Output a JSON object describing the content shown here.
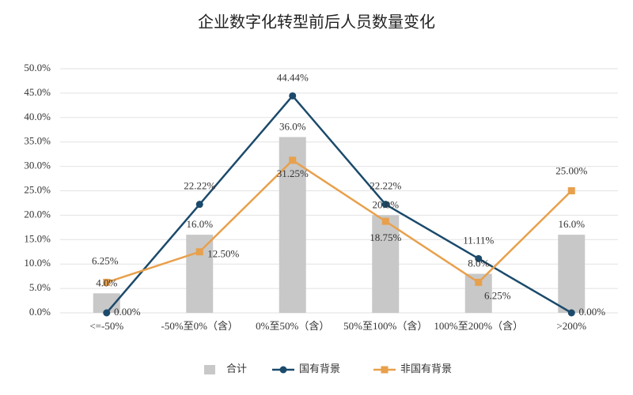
{
  "chart_data": {
    "type": "bar-line",
    "title": "企业数字化转型前后人员数量变化",
    "categories": [
      "<=-50%",
      "-50%至0%（含）",
      "0%至50%（含）",
      "50%至100%（含）",
      "100%至200%（含）",
      ">200%"
    ],
    "ylim": [
      0,
      50
    ],
    "yticks": [
      {
        "value": 0,
        "label": "0.0%"
      },
      {
        "value": 5,
        "label": "5.0%"
      },
      {
        "value": 10,
        "label": "10.0%"
      },
      {
        "value": 15,
        "label": "15.0%"
      },
      {
        "value": 20,
        "label": "20.0%"
      },
      {
        "value": 25,
        "label": "25.0%"
      },
      {
        "value": 30,
        "label": "30.0%"
      },
      {
        "value": 35,
        "label": "35.0%"
      },
      {
        "value": 40,
        "label": "40.0%"
      },
      {
        "value": 45,
        "label": "45.0%"
      },
      {
        "value": 50,
        "label": "50.0%"
      }
    ],
    "grid": true,
    "series": [
      {
        "name": "合计",
        "type": "bar",
        "color": "#c8c8c8",
        "values": [
          4.0,
          16.0,
          36.0,
          20.0,
          8.0,
          16.0
        ],
        "value_labels": [
          "4.0%",
          "16.0%",
          "36.0%",
          "20.0%",
          "8.0%",
          "16.0%"
        ]
      },
      {
        "name": "国有背景",
        "type": "line",
        "color": "#1b4a6b",
        "values": [
          0,
          22.22,
          44.44,
          22.22,
          11.11,
          0
        ],
        "value_labels": [
          "0.00%",
          "22.22%",
          "44.44%",
          "22.22%",
          "11.11%",
          "0.00%"
        ]
      },
      {
        "name": "非国有背景",
        "type": "line",
        "color": "#e8a04c",
        "values": [
          6.25,
          12.5,
          31.25,
          18.75,
          6.25,
          25
        ],
        "value_labels": [
          "6.25%",
          "12.50%",
          "31.25%",
          "18.75%",
          "6.25%",
          "25.00%"
        ]
      }
    ],
    "legend": "bottom"
  }
}
